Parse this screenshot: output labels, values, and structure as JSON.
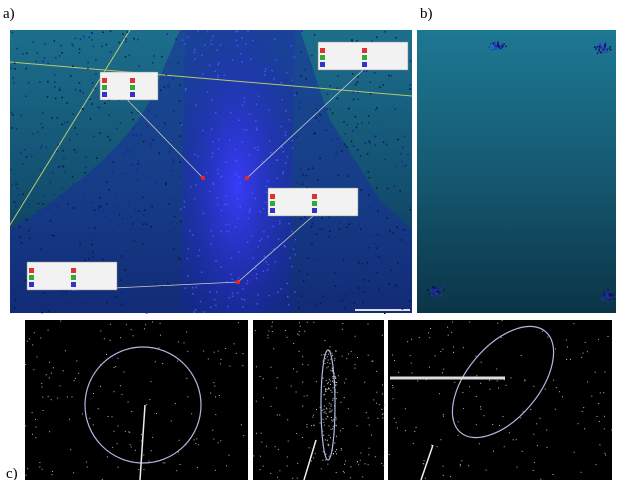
{
  "panels": {
    "a": {
      "label": "a)"
    },
    "b": {
      "label": "b)"
    },
    "c": {
      "label": "c)"
    }
  }
}
